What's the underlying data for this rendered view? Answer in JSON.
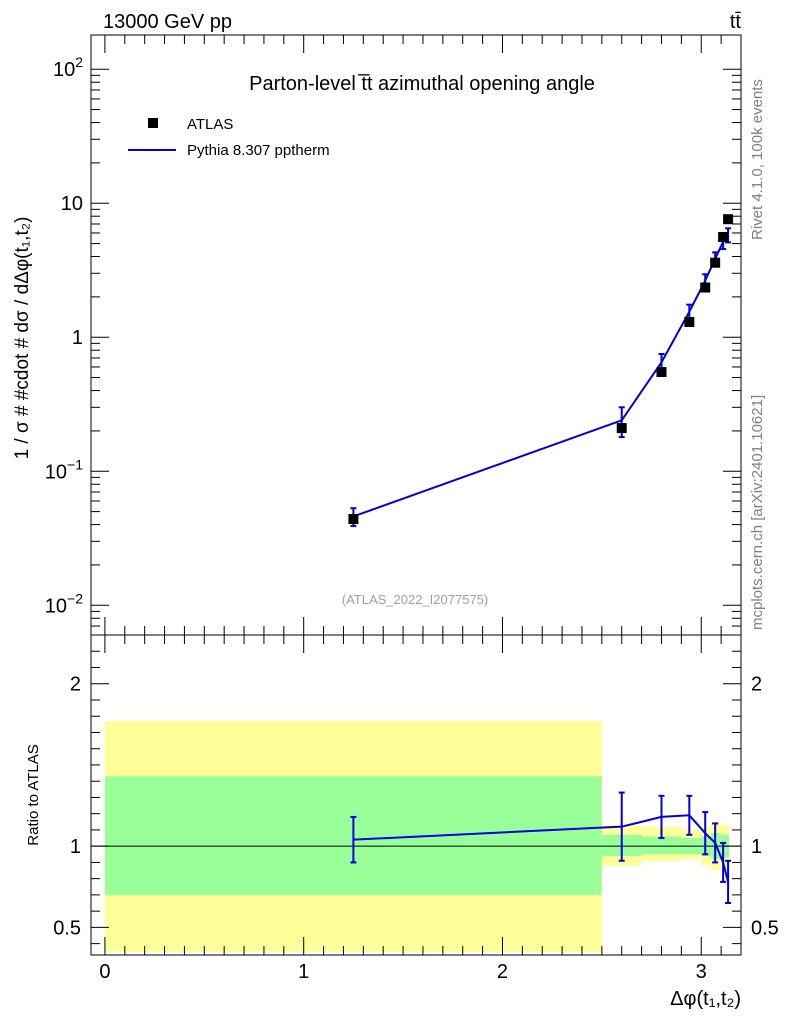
{
  "header": {
    "energy_label": "13000 GeV pp",
    "process_label": "tt̄"
  },
  "side_text": {
    "rivet": "Rivet 4.1.0,  100k events",
    "mcplots": "mcplots.cern.ch [arXiv:2401.10621]"
  },
  "chart_data": [
    {
      "type": "scatter",
      "panel": "main",
      "title": "Parton-level t̅t azimuthal opening angle",
      "analysis_tag": "(ATLAS_2022_I2077575)",
      "ylabel": "1 / σ # #cdot # dσ / dΔφ(t₁,t₂)",
      "xlabel": "Δφ(t₁,t₂)",
      "yscale": "log",
      "xlim": [
        -0.07,
        3.2
      ],
      "ylim": [
        0.006,
        180
      ],
      "y_ticks": [
        {
          "value": 0.01,
          "base": "10",
          "exp": "−2"
        },
        {
          "value": 0.1,
          "base": "10",
          "exp": "−1"
        },
        {
          "value": 1,
          "label": "1"
        },
        {
          "value": 10,
          "label": "10"
        },
        {
          "value": 100,
          "base": "10",
          "exp": "2"
        }
      ],
      "legend": [
        {
          "name": "ATLAS",
          "style": "marker",
          "color": "#000000"
        },
        {
          "name": "Pythia 8.307 pptherm",
          "style": "line",
          "color": "#0000e0"
        }
      ],
      "series": [
        {
          "name": "ATLAS",
          "x": [
            1.25,
            2.6,
            2.8,
            2.94,
            3.02,
            3.07,
            3.11,
            3.135
          ],
          "y": [
            0.044,
            0.21,
            0.55,
            1.3,
            2.35,
            3.6,
            5.6,
            7.6
          ],
          "yerr": [
            0.004,
            0.018,
            0.04,
            0.1,
            0.15,
            0.3,
            0.4,
            0.5
          ]
        },
        {
          "name": "Pythia 8.307 pptherm",
          "x": [
            1.25,
            2.6,
            2.8,
            2.94,
            3.02,
            3.07,
            3.11,
            3.135
          ],
          "y": [
            0.046,
            0.24,
            0.65,
            1.55,
            2.65,
            3.85,
            5.15,
            5.8
          ],
          "yerr": [
            0.007,
            0.06,
            0.1,
            0.2,
            0.3,
            0.45,
            0.6,
            0.7
          ]
        }
      ]
    },
    {
      "type": "line",
      "panel": "ratio",
      "ylabel": "Ratio to ATLAS",
      "xlabel": "Δφ(t₁,t₂)",
      "xlim": [
        -0.07,
        3.2
      ],
      "ylim": [
        0.33,
        2.3
      ],
      "y_ticks": [
        0.5,
        1,
        2
      ],
      "y_tick_labels": [
        "0.5",
        "1",
        "2"
      ],
      "x_ticks": [
        0,
        1,
        2,
        3
      ],
      "x_tick_labels": [
        "0",
        "1",
        "2",
        "3"
      ],
      "bands": [
        {
          "x0": 0.0,
          "x1": 2.5,
          "yellow": [
            0.35,
            1.77
          ],
          "green": [
            0.7,
            1.43
          ]
        },
        {
          "x0": 2.5,
          "x1": 2.7,
          "yellow": [
            0.88,
            1.13
          ],
          "green": [
            0.94,
            1.07
          ]
        },
        {
          "x0": 2.7,
          "x1": 2.9,
          "yellow": [
            0.91,
            1.12
          ],
          "green": [
            0.95,
            1.06
          ]
        },
        {
          "x0": 2.9,
          "x1": 3.0,
          "yellow": [
            0.92,
            1.1
          ],
          "green": [
            0.95,
            1.05
          ]
        },
        {
          "x0": 3.0,
          "x1": 3.05,
          "yellow": [
            0.88,
            1.12
          ],
          "green": [
            0.94,
            1.06
          ]
        },
        {
          "x0": 3.05,
          "x1": 3.1,
          "yellow": [
            0.85,
            1.15
          ],
          "green": [
            0.92,
            1.08
          ]
        },
        {
          "x0": 3.1,
          "x1": 3.14,
          "yellow": [
            0.87,
            1.13
          ],
          "green": [
            0.93,
            1.07
          ]
        }
      ],
      "series": [
        {
          "name": "Pythia 8.307 pptherm",
          "x": [
            1.25,
            2.6,
            2.8,
            2.94,
            3.02,
            3.07,
            3.11,
            3.135
          ],
          "y": [
            1.04,
            1.12,
            1.18,
            1.19,
            1.08,
            1.02,
            0.9,
            0.78
          ],
          "yerr": [
            0.14,
            0.21,
            0.13,
            0.12,
            0.13,
            0.12,
            0.12,
            0.13
          ]
        }
      ]
    }
  ]
}
